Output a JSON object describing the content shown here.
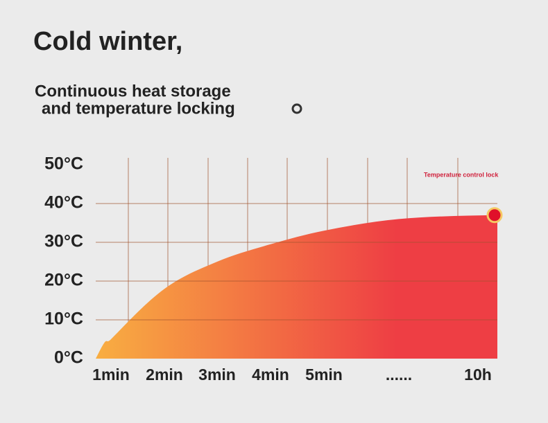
{
  "chart_data": {
    "type": "area",
    "title": "Cold winter,",
    "subtitle": [
      "Continuous heat storage",
      "and temperature locking"
    ],
    "categories": [
      "1min",
      "2min",
      "3min",
      "4min",
      "5min",
      "......",
      "10h"
    ],
    "series": [
      {
        "name": "Temperature",
        "values": [
          5,
          18,
          25,
          29.5,
          33,
          36,
          37
        ],
        "colors": [
          "#f8ae42",
          "#ee3e44"
        ]
      }
    ],
    "ylim": [
      0,
      50
    ],
    "yticks": [
      {
        "value": 0,
        "label": "0°C"
      },
      {
        "value": 10,
        "label": "10°C"
      },
      {
        "value": 20,
        "label": "20°C"
      },
      {
        "value": 30,
        "label": "30°C"
      },
      {
        "value": 40,
        "label": "40°C"
      },
      {
        "value": 50,
        "label": "50°C"
      }
    ],
    "annotation": "Temperature control lock",
    "grid": true
  }
}
